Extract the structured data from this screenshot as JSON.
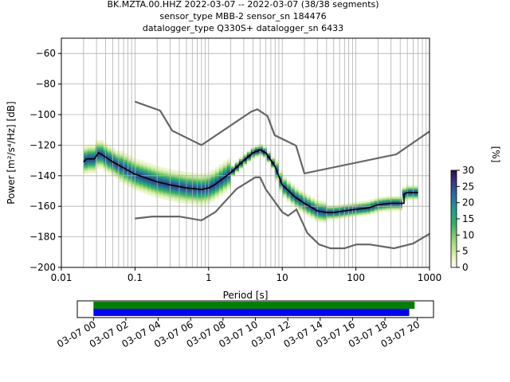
{
  "title_lines": [
    "BK.MZTA.00.HHZ   2022-03-07 -- 2022-03-07  (38/38 segments)",
    "sensor_type MBB-2 sensor_sn 184476",
    "datalogger_type Q330S+ datalogger_sn 6433"
  ],
  "colors": {
    "mean": "#000000",
    "noise_model": "#666666",
    "grid": "#b0b0b0",
    "timeline_green": "#008000",
    "timeline_blue": "#0000ff"
  },
  "chart_data": [
    {
      "type": "heatmap",
      "xlabel": "Period [s]",
      "ylabel": "Power [m²/s⁴/Hz] [dB]",
      "xscale": "log",
      "xlim": [
        0.01,
        1000
      ],
      "ylim": [
        -200,
        -50
      ],
      "x_ticks": [
        0.01,
        0.1,
        1,
        10,
        100,
        1000
      ],
      "x_tick_labels": [
        "0.01",
        "0.1",
        "1",
        "10",
        "100",
        "1000"
      ],
      "y_ticks": [
        -200,
        -180,
        -160,
        -140,
        -120,
        -100,
        -80,
        -60
      ],
      "y_tick_labels": [
        "−200",
        "−180",
        "−160",
        "−140",
        "−120",
        "−100",
        "−80",
        "−60"
      ],
      "grid": true,
      "colorbar": {
        "label": "[%]",
        "range": [
          0,
          30
        ],
        "ticks": [
          0,
          5,
          10,
          15,
          20,
          25,
          30
        ],
        "tick_labels": [
          "0",
          "5",
          "10",
          "15",
          "20",
          "25",
          "30"
        ],
        "colormap": "pqlx"
      },
      "series": [
        {
          "role": "mean",
          "x": [
            0.02,
            0.022,
            0.028,
            0.032,
            0.035,
            0.05,
            0.1,
            0.2,
            0.3,
            0.5,
            0.8,
            1.0,
            1.2,
            2.0,
            3.0,
            4.0,
            5.0,
            6.0,
            8.0,
            10.0,
            15.0,
            20.0,
            30.0,
            40.0,
            50.0,
            70.0,
            100.0,
            150.0,
            200.0,
            300.0,
            350.0,
            450.0,
            450.0,
            500.0,
            700.0
          ],
          "y": [
            -131,
            -129,
            -129,
            -125,
            -126,
            -131,
            -139,
            -144,
            -146,
            -148,
            -149,
            -148,
            -146,
            -138,
            -130,
            -125,
            -123,
            -125,
            -134,
            -146,
            -154,
            -158,
            -163,
            -164,
            -164,
            -163,
            -162,
            -161,
            -159,
            -158,
            -158,
            -158,
            -152,
            -151,
            -151
          ]
        },
        {
          "role": "noise_model_high",
          "x": [
            0.1,
            0.22,
            0.32,
            0.8,
            3.8,
            4.6,
            6.3,
            7.9,
            15.4,
            20.0,
            354.8,
            1000
          ],
          "y": [
            -91.5,
            -97.4,
            -110.5,
            -120.0,
            -98.0,
            -96.5,
            -101.0,
            -113.5,
            -120.3,
            -138.5,
            -126.0,
            -111.0
          ]
        },
        {
          "role": "noise_model_low",
          "x": [
            0.1,
            0.17,
            0.4,
            0.8,
            1.24,
            2.4,
            4.3,
            5.0,
            6.0,
            10.0,
            12.0,
            15.6,
            21.9,
            31.6,
            45.0,
            70.0,
            101.0,
            154.0,
            328.0,
            600.0,
            1000
          ],
          "y": [
            -168.0,
            -166.7,
            -166.7,
            -169.2,
            -163.7,
            -148.6,
            -141.1,
            -141.1,
            -149.0,
            -163.8,
            -166.2,
            -162.1,
            -177.5,
            -185.0,
            -187.5,
            -187.5,
            -185.0,
            -185.0,
            -187.5,
            -184.4,
            -178.0
          ]
        }
      ]
    },
    {
      "type": "timeline",
      "xlim": [
        "2022-03-06 23:00",
        "2022-03-07 21:00"
      ],
      "x_ticks": [
        "03-07 00",
        "03-07 02",
        "03-07 04",
        "03-07 06",
        "03-07 08",
        "03-07 10",
        "03-07 12",
        "03-07 14",
        "03-07 16",
        "03-07 18",
        "03-07 20"
      ],
      "bars": [
        {
          "color": "green",
          "start": "2022-03-07 00:00",
          "end": "2022-03-07 19:50"
        },
        {
          "color": "blue",
          "start": "2022-03-07 00:00",
          "end": "2022-03-07 19:30"
        }
      ]
    }
  ]
}
